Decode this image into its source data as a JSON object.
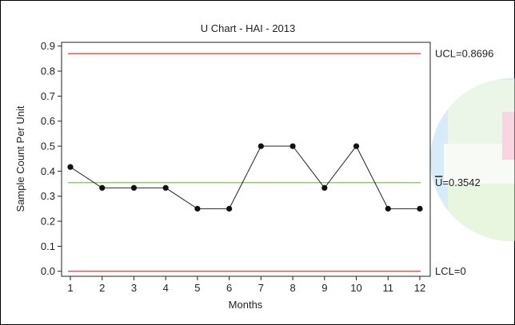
{
  "chart_data": {
    "type": "line",
    "title": "U Chart - HAI - 2013",
    "xlabel": "Months",
    "ylabel": "Sample Count Per Unit",
    "x": [
      1,
      2,
      3,
      4,
      5,
      6,
      7,
      8,
      9,
      10,
      11,
      12
    ],
    "x_tick_labels": [
      "1",
      "2",
      "3",
      "4",
      "5",
      "6",
      "7",
      "8",
      "9",
      "10",
      "11",
      "12"
    ],
    "y_ticks": [
      "0.0",
      "0.1",
      "0.2",
      "0.3",
      "0.4",
      "0.5",
      "0.6",
      "0.7",
      "0.8",
      "0.9"
    ],
    "ylim": [
      -0.02,
      0.915
    ],
    "series": [
      {
        "values": [
          0.4167,
          0.3333,
          0.3333,
          0.3333,
          0.25,
          0.25,
          0.5,
          0.5,
          0.3333,
          0.5,
          0.25,
          0.25
        ]
      }
    ],
    "control_limits": {
      "ucl": {
        "value": 0.8696,
        "label": "UCL=0.8696",
        "color": "#e53935"
      },
      "center": {
        "value": 0.3542,
        "label": "U=0.3542",
        "label_overline": "U",
        "label_rest": "=0.3542",
        "color": "#7cc24b"
      },
      "lcl": {
        "value": 0,
        "label": "LCL=0",
        "color": "#e53935"
      }
    },
    "grid": false,
    "line_color": "#222222",
    "marker_color": "#111111"
  }
}
